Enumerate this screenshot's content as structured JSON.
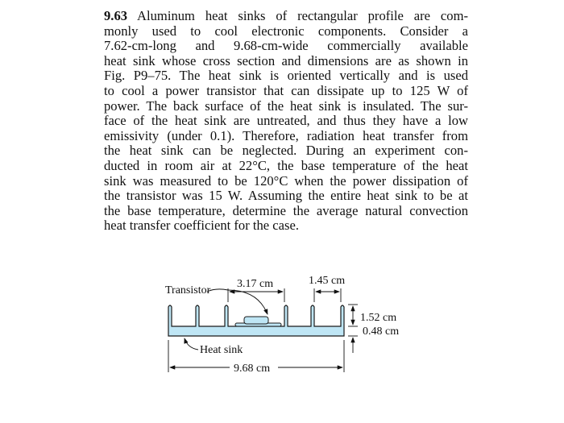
{
  "problem": {
    "number": "9.63",
    "lines": [
      "Aluminum heat sinks of rectangular profile are com-",
      "monly used to cool electronic components. Consider a",
      "7.62-cm-long and 9.68-cm-wide commercially available",
      "heat sink whose cross section and dimensions are as shown in",
      "Fig. P9–75. The heat sink is oriented vertically and is used",
      "to cool a power transistor that can dissipate up to 125 W of",
      "power. The back surface of the heat sink is insulated. The sur-",
      "face of the heat sink are untreated, and thus they have a low",
      "emissivity (under 0.1). Therefore, radiation heat transfer from",
      "the heat sink can be neglected. During an experiment con-",
      "ducted in room air at 22°C, the base temperature of the heat",
      "sink was measured to be 120°C when the power dissipation of",
      "the transistor was 15 W. Assuming the entire heat sink to be at",
      "the base temperature, determine the average natural convection",
      "heat transfer coefficient for the case."
    ]
  },
  "figure": {
    "labels": {
      "transistor": "Transistor",
      "heat_sink": "Heat sink",
      "fin_gap_center": "3.17 cm",
      "fin_spacing": "1.45 cm",
      "fin_height": "1.52 cm",
      "base_thickness": "0.48 cm",
      "width": "9.68 cm"
    },
    "colors": {
      "sink_fill": "#bfe6f5",
      "outline": "#1a1a1a"
    }
  }
}
